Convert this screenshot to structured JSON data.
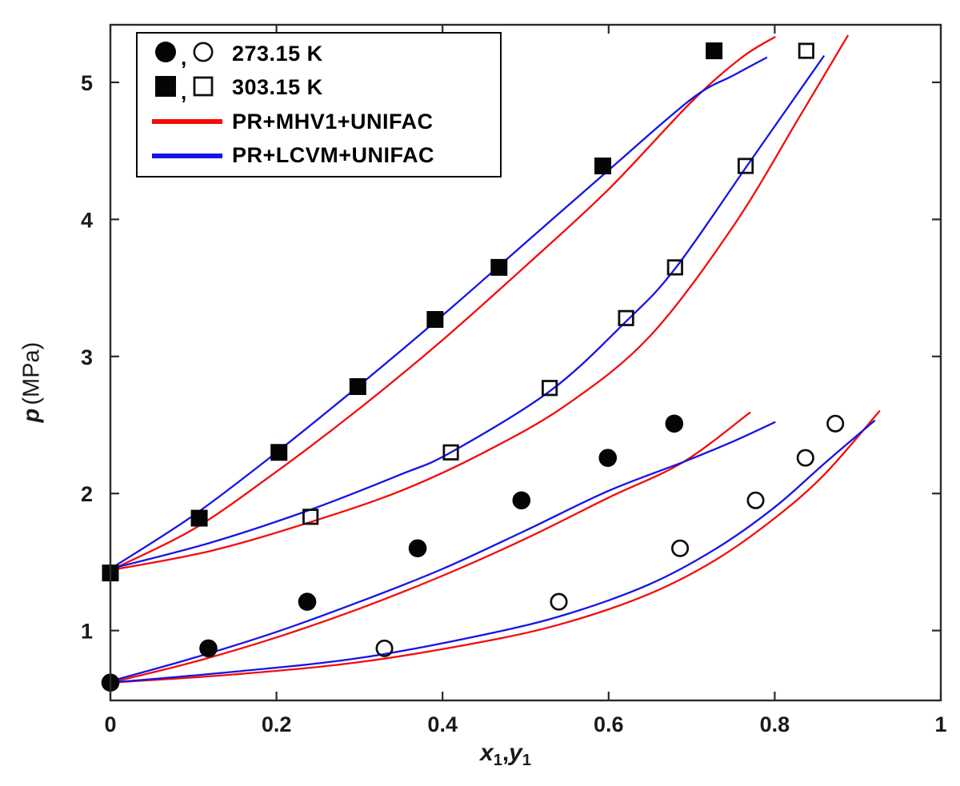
{
  "figure": {
    "background": "#ffffff",
    "axis_color": "#2b2b2b",
    "tick_label_color": "#1a1a1a",
    "marker_color": "#050505",
    "ylabel": {
      "symbol": "p",
      "unit": "(MPa)"
    },
    "xlabel": {
      "var1": "x",
      "sub1": "1",
      "comma": ",",
      "var2": "y",
      "sub2": "1"
    }
  },
  "legend": {
    "position": "upper-left",
    "separator": ",",
    "rows": [
      {
        "type": "circle-markers",
        "label": "273.15 K"
      },
      {
        "type": "square-markers",
        "label": "303.15 K"
      },
      {
        "type": "line",
        "color": "#f40b0b",
        "label": "PR+MHV1+UNIFAC"
      },
      {
        "type": "line",
        "color": "#1414e8",
        "label": "PR+LCVM+UNIFAC"
      }
    ]
  },
  "chart_data": {
    "type": "scatter",
    "title": "",
    "xlabel": "x1, y1",
    "ylabel": "p (MPa)",
    "xlim": [
      0,
      1
    ],
    "ylim": [
      0.49,
      5.42
    ],
    "grid": false,
    "x_ticks": [
      {
        "label": "0",
        "value": 0.0
      },
      {
        "label": "0.2",
        "value": 0.2
      },
      {
        "label": "0.4",
        "value": 0.4
      },
      {
        "label": "0.6",
        "value": 0.6
      },
      {
        "label": "0.8",
        "value": 0.8
      },
      {
        "label": "1",
        "value": 1.0
      }
    ],
    "y_ticks": [
      {
        "label": "1",
        "value": 1
      },
      {
        "label": "2",
        "value": 2
      },
      {
        "label": "3",
        "value": 3
      },
      {
        "label": "4",
        "value": 4
      },
      {
        "label": "5",
        "value": 5
      }
    ],
    "series": [
      {
        "id": "273K-liquid",
        "name": "273.15 K liquid (x1)",
        "marker": "filled-circle",
        "points": [
          [
            0.0,
            0.62
          ],
          [
            0.118,
            0.87
          ],
          [
            0.237,
            1.21
          ],
          [
            0.37,
            1.6
          ],
          [
            0.495,
            1.95
          ],
          [
            0.599,
            2.26
          ],
          [
            0.679,
            2.51
          ]
        ]
      },
      {
        "id": "273K-vapor",
        "name": "273.15 K vapor (y1)",
        "marker": "open-circle",
        "points": [
          [
            0.33,
            0.87
          ],
          [
            0.54,
            1.21
          ],
          [
            0.686,
            1.6
          ],
          [
            0.777,
            1.95
          ],
          [
            0.837,
            2.26
          ],
          [
            0.873,
            2.51
          ]
        ]
      },
      {
        "id": "303K-liquid",
        "name": "303.15 K liquid (x1)",
        "marker": "filled-square",
        "points": [
          [
            0.0,
            1.42
          ],
          [
            0.107,
            1.82
          ],
          [
            0.203,
            2.3
          ],
          [
            0.298,
            2.78
          ],
          [
            0.391,
            3.27
          ],
          [
            0.468,
            3.65
          ],
          [
            0.593,
            4.39
          ],
          [
            0.727,
            5.23
          ]
        ]
      },
      {
        "id": "303K-vapor",
        "name": "303.15 K vapor (y1)",
        "marker": "open-square",
        "points": [
          [
            0.241,
            1.83
          ],
          [
            0.41,
            2.3
          ],
          [
            0.529,
            2.77
          ],
          [
            0.621,
            3.28
          ],
          [
            0.68,
            3.65
          ],
          [
            0.765,
            4.39
          ],
          [
            0.838,
            5.23
          ]
        ]
      }
    ],
    "curves": [
      {
        "id": "mhv1-303-bubble",
        "model": "PR+MHV1+UNIFAC",
        "temperature": "303.15 K",
        "branch": "bubble",
        "color": "#f40b0b",
        "points": [
          [
            0,
            1.44
          ],
          [
            0.1,
            1.74
          ],
          [
            0.2,
            2.16
          ],
          [
            0.3,
            2.62
          ],
          [
            0.4,
            3.12
          ],
          [
            0.5,
            3.66
          ],
          [
            0.6,
            4.22
          ],
          [
            0.7,
            4.86
          ],
          [
            0.76,
            5.18
          ],
          [
            0.8,
            5.33
          ]
        ]
      },
      {
        "id": "lcvm-303-bubble",
        "model": "PR+LCVM+UNIFAC",
        "temperature": "303.15 K",
        "branch": "bubble",
        "color": "#1414e8",
        "points": [
          [
            0,
            1.45
          ],
          [
            0.1,
            1.84
          ],
          [
            0.2,
            2.3
          ],
          [
            0.3,
            2.79
          ],
          [
            0.4,
            3.3
          ],
          [
            0.5,
            3.83
          ],
          [
            0.6,
            4.36
          ],
          [
            0.7,
            4.88
          ],
          [
            0.75,
            5.05
          ],
          [
            0.79,
            5.18
          ]
        ]
      },
      {
        "id": "mhv1-303-dew",
        "model": "PR+MHV1+UNIFAC",
        "temperature": "303.15 K",
        "branch": "dew",
        "color": "#f40b0b",
        "points": [
          [
            0,
            1.44
          ],
          [
            0.12,
            1.58
          ],
          [
            0.24,
            1.79
          ],
          [
            0.35,
            2.02
          ],
          [
            0.45,
            2.3
          ],
          [
            0.55,
            2.65
          ],
          [
            0.65,
            3.15
          ],
          [
            0.75,
            3.95
          ],
          [
            0.83,
            4.75
          ],
          [
            0.888,
            5.34
          ]
        ]
      },
      {
        "id": "lcvm-303-dew",
        "model": "PR+LCVM+UNIFAC",
        "temperature": "303.15 K",
        "branch": "dew",
        "color": "#1414e8",
        "points": [
          [
            0,
            1.45
          ],
          [
            0.12,
            1.64
          ],
          [
            0.24,
            1.88
          ],
          [
            0.35,
            2.14
          ],
          [
            0.41,
            2.3
          ],
          [
            0.53,
            2.75
          ],
          [
            0.62,
            3.25
          ],
          [
            0.68,
            3.64
          ],
          [
            0.77,
            4.42
          ],
          [
            0.859,
            5.19
          ]
        ]
      },
      {
        "id": "mhv1-273-bubble",
        "model": "PR+MHV1+UNIFAC",
        "temperature": "273.15 K",
        "branch": "bubble",
        "color": "#f40b0b",
        "points": [
          [
            0,
            0.62
          ],
          [
            0.1,
            0.77
          ],
          [
            0.2,
            0.95
          ],
          [
            0.3,
            1.16
          ],
          [
            0.4,
            1.4
          ],
          [
            0.5,
            1.67
          ],
          [
            0.6,
            1.97
          ],
          [
            0.69,
            2.23
          ],
          [
            0.77,
            2.59
          ]
        ]
      },
      {
        "id": "lcvm-273-bubble",
        "model": "PR+LCVM+UNIFAC",
        "temperature": "273.15 K",
        "branch": "bubble",
        "color": "#1414e8",
        "points": [
          [
            0,
            0.63
          ],
          [
            0.1,
            0.8
          ],
          [
            0.2,
            0.99
          ],
          [
            0.3,
            1.21
          ],
          [
            0.4,
            1.45
          ],
          [
            0.5,
            1.73
          ],
          [
            0.6,
            2.02
          ],
          [
            0.69,
            2.23
          ],
          [
            0.75,
            2.38
          ],
          [
            0.8,
            2.52
          ]
        ]
      },
      {
        "id": "mhv1-273-dew",
        "model": "PR+MHV1+UNIFAC",
        "temperature": "273.15 K",
        "branch": "dew",
        "color": "#f40b0b",
        "points": [
          [
            0,
            0.62
          ],
          [
            0.15,
            0.68
          ],
          [
            0.3,
            0.77
          ],
          [
            0.45,
            0.92
          ],
          [
            0.55,
            1.06
          ],
          [
            0.65,
            1.27
          ],
          [
            0.73,
            1.52
          ],
          [
            0.8,
            1.82
          ],
          [
            0.86,
            2.14
          ],
          [
            0.926,
            2.6
          ]
        ]
      },
      {
        "id": "lcvm-273-dew",
        "model": "PR+LCVM+UNIFAC",
        "temperature": "273.15 K",
        "branch": "dew",
        "color": "#1414e8",
        "points": [
          [
            0,
            0.62
          ],
          [
            0.15,
            0.7
          ],
          [
            0.3,
            0.8
          ],
          [
            0.45,
            0.97
          ],
          [
            0.55,
            1.12
          ],
          [
            0.65,
            1.34
          ],
          [
            0.73,
            1.6
          ],
          [
            0.8,
            1.9
          ],
          [
            0.86,
            2.22
          ],
          [
            0.92,
            2.53
          ]
        ]
      }
    ],
    "legend_entries": [
      "273.15 K",
      "303.15 K",
      "PR+MHV1+UNIFAC",
      "PR+LCVM+UNIFAC"
    ]
  }
}
